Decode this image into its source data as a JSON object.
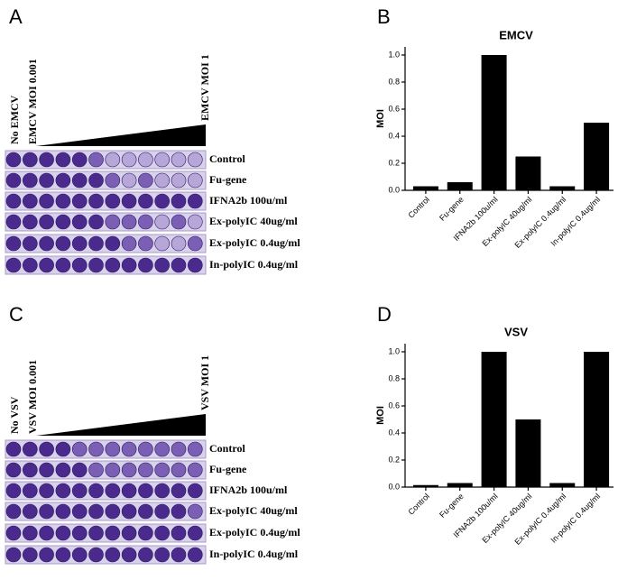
{
  "panels": [
    "A",
    "B",
    "C",
    "D"
  ],
  "plates": [
    {
      "start_labels": [
        "No EMCV",
        "EMCV MOI 0.001"
      ],
      "end_label": "EMCV MOI 1",
      "rows": [
        "Control",
        "Fu-gene",
        "IFNA2b 100u/ml",
        "Ex-polyIC 40ug/ml",
        "Ex-polyIC 0.4ug/ml",
        "In-polyIC 0.4ug/ml"
      ]
    },
    {
      "start_labels": [
        "No VSV",
        "VSV MOI 0.001"
      ],
      "end_label": "VSV MOI 1",
      "rows": [
        "Control",
        "Fu-gene",
        "IFNA2b 100u/ml",
        "Ex-polyIC 40ug/ml",
        "Ex-polyIC 0.4ug/ml",
        "In-polyIC 0.4ug/ml"
      ]
    }
  ],
  "chart_data": [
    {
      "type": "bar",
      "title": "EMCV",
      "y_label": "MOI",
      "color": "#000000",
      "categories": [
        "Control",
        "Fu-gene",
        "IFNA2b 100u/ml",
        "Ex-polyIC 40ug/ml",
        "Ex-polyIC 0.4ug/ml",
        "In-polyIC 0.4ug/ml"
      ],
      "values": [
        0.03,
        0.06,
        1.0,
        0.25,
        0.03,
        0.5
      ],
      "ylim": [
        0,
        1.06
      ],
      "yticks": [
        {
          "value": 0,
          "label": "0.0"
        },
        0.2,
        0.4,
        0.6,
        0.8,
        {
          "value": 1,
          "label": "1.0"
        }
      ]
    },
    {
      "type": "bar",
      "title": "VSV",
      "y_label": "MOI",
      "color": "#000000",
      "categories": [
        "Control",
        "Fu-gene",
        "IFNA2b 100u/ml",
        "Ex-polyIC 40ug/ml",
        "Ex-polyIC 0.4ug/ml",
        "In-polyIC 0.4ug/ml"
      ],
      "values": [
        0.015,
        0.03,
        1.0,
        0.5,
        0.03,
        1.0
      ],
      "ylim": [
        0,
        1.06
      ],
      "yticks": [
        {
          "value": 0,
          "label": "0.0"
        },
        0.2,
        0.4,
        0.6,
        0.8,
        {
          "value": 1,
          "label": "1.0"
        }
      ]
    }
  ]
}
